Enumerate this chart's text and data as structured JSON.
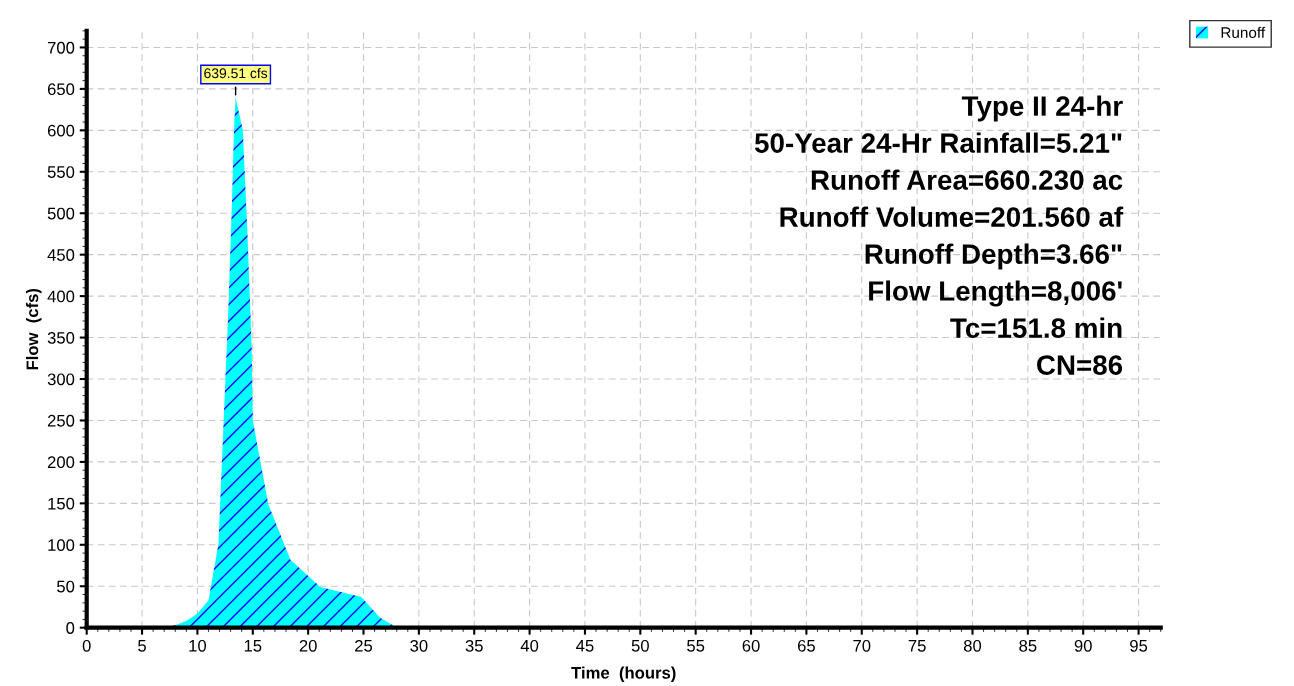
{
  "chart_data": {
    "type": "area",
    "xlabel": "Time  (hours)",
    "ylabel": "Flow  (cfs)",
    "series": [
      {
        "name": "Runoff",
        "color": "#00ffff",
        "x": [
          0,
          6.5,
          8,
          9,
          10,
          11,
          11.9,
          12.2,
          12.5,
          12.8,
          13.1,
          13.3,
          13.45,
          14.1,
          14.5,
          14.9,
          15.0,
          16.4,
          18.4,
          21.1,
          24.8,
          26.5,
          27.9,
          30,
          40,
          50,
          60,
          70,
          80,
          90,
          95
        ],
        "values": [
          0,
          0,
          3,
          8,
          17,
          33,
          101,
          196,
          291,
          386,
          505,
          600,
          639.51,
          600,
          481,
          339,
          250,
          149,
          82,
          49,
          37,
          12,
          1,
          0,
          0,
          0,
          0,
          0,
          0,
          0,
          0
        ]
      }
    ],
    "xlim": [
      0,
      97
    ],
    "ylim": [
      0,
      720
    ],
    "xticks": [
      0,
      5,
      10,
      15,
      20,
      25,
      30,
      35,
      40,
      45,
      50,
      55,
      60,
      65,
      70,
      75,
      80,
      85,
      90,
      95
    ],
    "yticks": [
      0,
      50,
      100,
      150,
      200,
      250,
      300,
      350,
      400,
      450,
      500,
      550,
      600,
      650,
      700
    ],
    "grid": true,
    "legend": "top right",
    "annotations": [
      {
        "text": "639.51 cfs",
        "x": 13.45,
        "y": 639.51
      },
      "Type II 24-hr",
      "50-Year 24-Hr Rainfall=5.21\"",
      "Runoff Area=660.230 ac",
      "Runoff Volume=201.560 af",
      "Runoff Depth=3.66\"",
      "Flow Length=8,006'",
      "Tc=151.8 min",
      "CN=86"
    ]
  }
}
